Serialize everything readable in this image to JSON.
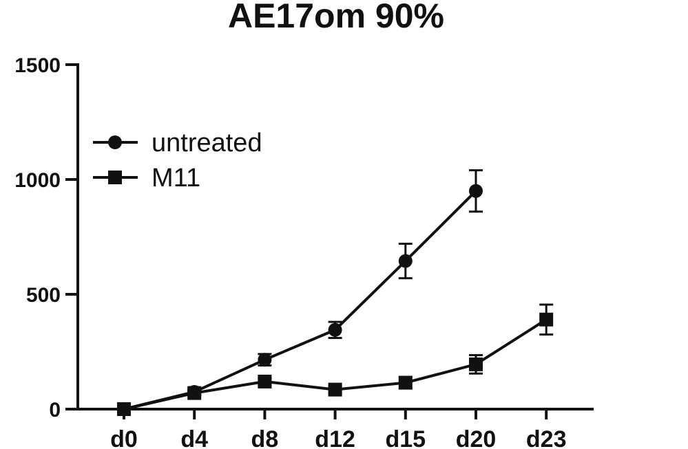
{
  "chart_data": {
    "type": "line",
    "title": "AE17om 90%",
    "xlabel": "",
    "ylabel": "",
    "categories": [
      "d0",
      "d4",
      "d8",
      "d12",
      "d15",
      "d20",
      "d23"
    ],
    "ylim": [
      0,
      1500
    ],
    "yticks": [
      0,
      500,
      1000,
      1500
    ],
    "yticks_labels": [
      "0",
      "500",
      "1000",
      "1500"
    ],
    "grid": false,
    "legend_position": "top-left",
    "series": [
      {
        "name": "untreated",
        "marker": "circle",
        "color": "#111111",
        "values": [
          0,
          75,
          215,
          345,
          645,
          950,
          null
        ],
        "errors": [
          0,
          12,
          25,
          35,
          75,
          90,
          null
        ]
      },
      {
        "name": "M11",
        "marker": "square",
        "color": "#111111",
        "values": [
          0,
          70,
          120,
          85,
          115,
          195,
          390
        ],
        "errors": [
          0,
          10,
          15,
          15,
          25,
          40,
          65
        ]
      }
    ]
  }
}
